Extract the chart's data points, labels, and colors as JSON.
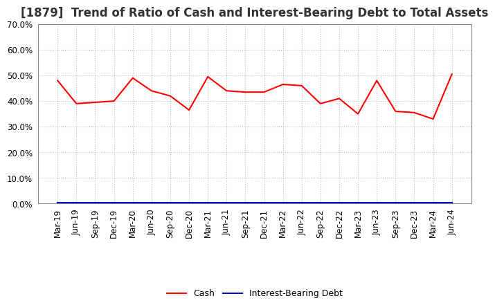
{
  "title": "[1879]  Trend of Ratio of Cash and Interest-Bearing Debt to Total Assets",
  "x_labels": [
    "Mar-19",
    "Jun-19",
    "Sep-19",
    "Dec-19",
    "Mar-20",
    "Jun-20",
    "Sep-20",
    "Dec-20",
    "Mar-21",
    "Jun-21",
    "Sep-21",
    "Dec-21",
    "Mar-22",
    "Jun-22",
    "Sep-22",
    "Dec-22",
    "Mar-23",
    "Jun-23",
    "Sep-23",
    "Dec-23",
    "Mar-24",
    "Jun-24"
  ],
  "cash": [
    48.0,
    39.0,
    39.5,
    40.0,
    49.0,
    44.0,
    42.0,
    36.5,
    49.5,
    44.0,
    43.5,
    43.5,
    46.5,
    46.0,
    39.0,
    41.0,
    35.0,
    48.0,
    36.0,
    35.5,
    33.0,
    50.5
  ],
  "interest_bearing_debt": [
    0.5,
    0.5,
    0.5,
    0.5,
    0.5,
    0.5,
    0.5,
    0.5,
    0.5,
    0.5,
    0.5,
    0.5,
    0.5,
    0.5,
    0.5,
    0.5,
    0.5,
    0.5,
    0.5,
    0.5,
    0.5,
    0.5
  ],
  "cash_color": "#ff0000",
  "debt_color": "#0000cd",
  "ylim": [
    0,
    70
  ],
  "yticks": [
    0,
    10,
    20,
    30,
    40,
    50,
    60,
    70
  ],
  "background_color": "#ffffff",
  "grid_color": "#bbbbbb",
  "title_fontsize": 12,
  "tick_fontsize": 8.5,
  "legend_labels": [
    "Cash",
    "Interest-Bearing Debt"
  ]
}
